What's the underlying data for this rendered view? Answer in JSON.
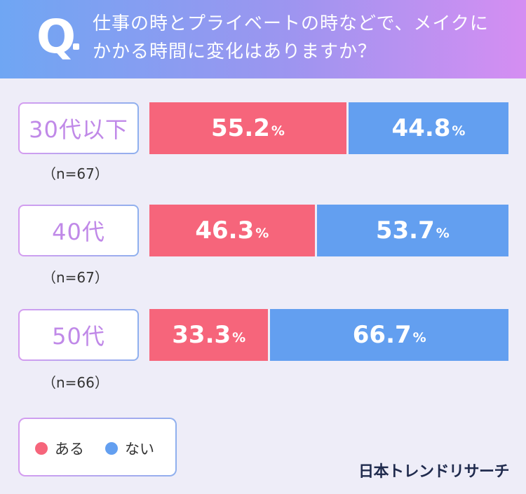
{
  "question": {
    "mark": "Q",
    "line1": "仕事の時とプライベートの時などで、メイクに",
    "line2": "かかる時間に変化はありますか？"
  },
  "colors": {
    "aru": "#f6657b",
    "nai": "#639ff0"
  },
  "chart_data": {
    "type": "bar",
    "stacked": true,
    "orientation": "horizontal",
    "unit": "%",
    "categories": [
      "30代以下",
      "40代",
      "50代"
    ],
    "sample_sizes": [
      "（n=67）",
      "（n=67）",
      "（n=66）"
    ],
    "series": [
      {
        "name": "ある",
        "values": [
          55.2,
          46.3,
          33.3
        ]
      },
      {
        "name": "ない",
        "values": [
          44.8,
          53.7,
          66.7
        ]
      }
    ],
    "labels": [
      [
        "55.2",
        "44.8"
      ],
      [
        "46.3",
        "53.7"
      ],
      [
        "33.3",
        "66.7"
      ]
    ],
    "xlim": [
      0,
      100
    ],
    "legend": "bottom-left"
  },
  "brand": "日本トレンドリサーチ"
}
